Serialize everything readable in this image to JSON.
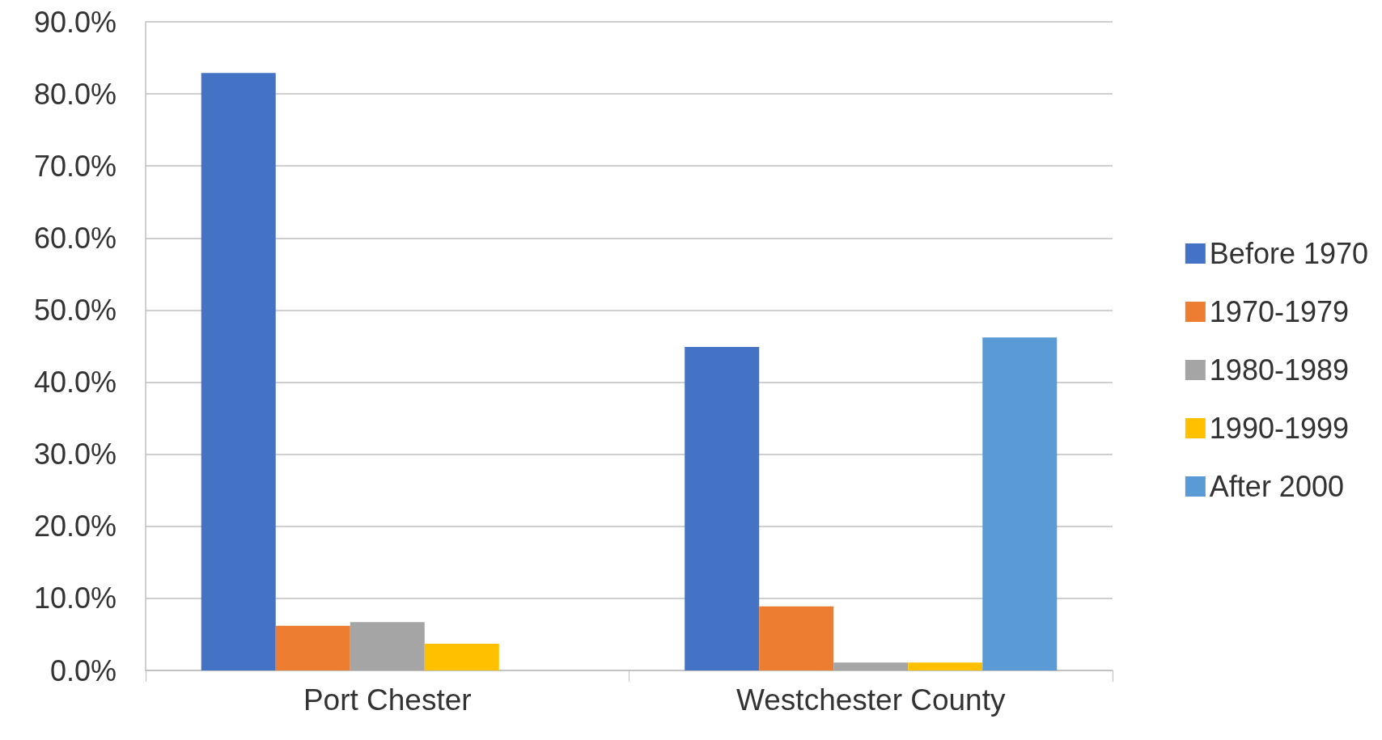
{
  "chart_data": {
    "type": "bar",
    "categories": [
      "Port Chester",
      "Westchester County"
    ],
    "series": [
      {
        "name": "Before 1970",
        "color": "#4472c4",
        "values": [
          82.9,
          44.9
        ]
      },
      {
        "name": "1970-1979",
        "color": "#ed7d31",
        "values": [
          6.2,
          8.9
        ]
      },
      {
        "name": "1980-1989",
        "color": "#a5a5a5",
        "values": [
          6.7,
          1.1
        ]
      },
      {
        "name": "1990-1999",
        "color": "#ffc000",
        "values": [
          3.7,
          1.1
        ]
      },
      {
        "name": "After 2000",
        "color": "#5b9bd5",
        "values": [
          0,
          46.2
        ]
      }
    ],
    "ylim": [
      0,
      90
    ],
    "yticks": [
      {
        "value": 0,
        "label": "0.0%"
      },
      {
        "value": 10,
        "label": "10.0%"
      },
      {
        "value": 20,
        "label": "20.0%"
      },
      {
        "value": 30,
        "label": "30.0%"
      },
      {
        "value": 40,
        "label": "40.0%"
      },
      {
        "value": 50,
        "label": "50.0%"
      },
      {
        "value": 60,
        "label": "60.0%"
      },
      {
        "value": 70,
        "label": "70.0%"
      },
      {
        "value": 80,
        "label": "80.0%"
      },
      {
        "value": 90,
        "label": "90.0%"
      }
    ],
    "grid": "y",
    "legend": "right"
  }
}
